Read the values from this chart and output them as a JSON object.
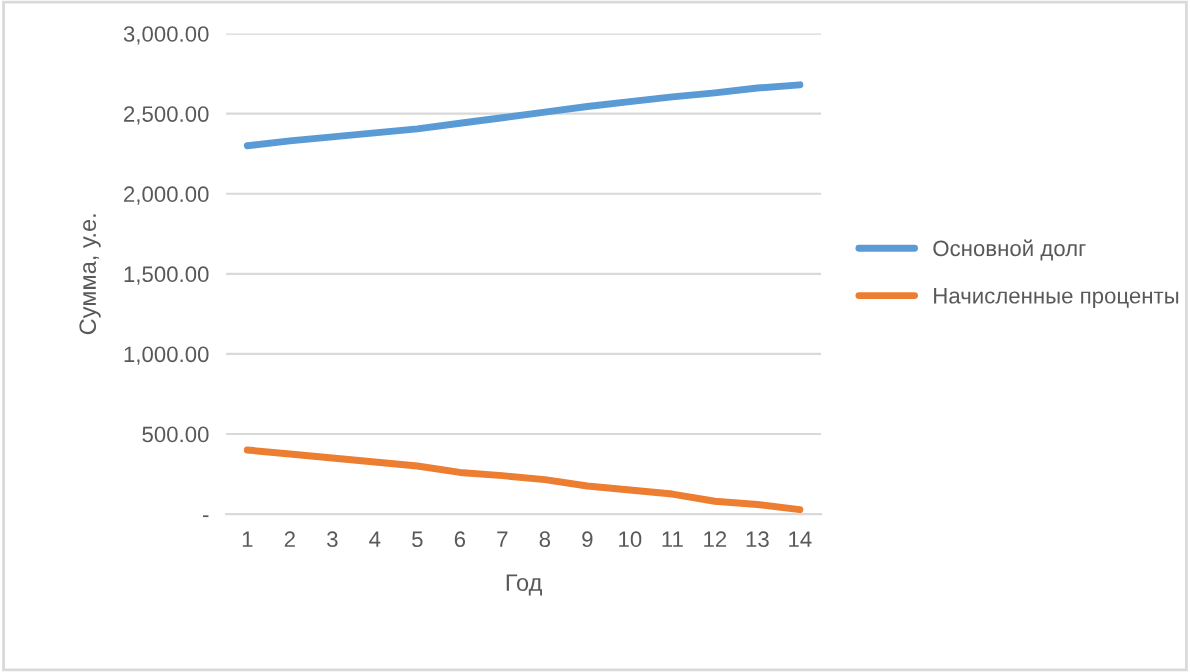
{
  "chart_data": {
    "type": "line",
    "xlabel": "Год",
    "ylabel": "Сумма, у.е.",
    "categories": [
      "1",
      "2",
      "3",
      "4",
      "5",
      "6",
      "7",
      "8",
      "9",
      "10",
      "11",
      "12",
      "13",
      "14"
    ],
    "series": [
      {
        "name": "Основной долг",
        "color": "#5b9bd5",
        "values": [
          2300,
          2330,
          2355,
          2380,
          2405,
          2440,
          2475,
          2510,
          2545,
          2575,
          2605,
          2630,
          2660,
          2680
        ]
      },
      {
        "name": "Начисленные проценты",
        "color": "#ed7d31",
        "values": [
          400,
          375,
          350,
          325,
          300,
          260,
          240,
          215,
          175,
          150,
          125,
          80,
          60,
          28
        ]
      }
    ],
    "ylim": [
      0,
      3000
    ],
    "yticks": [
      {
        "value": 0,
        "label": "-"
      },
      {
        "value": 500,
        "label": "500.00"
      },
      {
        "value": 1000,
        "label": "1,000.00"
      },
      {
        "value": 1500,
        "label": "1,500.00"
      },
      {
        "value": 2000,
        "label": "2,000.00"
      },
      {
        "value": 2500,
        "label": "2,500.00"
      },
      {
        "value": 3000,
        "label": "3,000.00"
      }
    ],
    "grid": "y",
    "legend": "right",
    "marker": "none",
    "line_style": "solid"
  }
}
